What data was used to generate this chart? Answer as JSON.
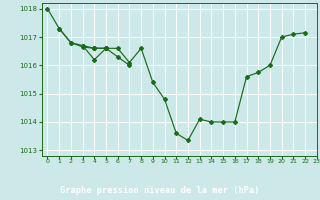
{
  "title": "Graphe pression niveau de la mer (hPa)",
  "background_color": "#cce8e8",
  "plot_bg_color": "#cce8e8",
  "grid_color": "#ffffff",
  "line_color": "#1a6b1a",
  "title_bg": "#2d7a2d",
  "title_fg": "#ffffff",
  "xlim": [
    -0.5,
    23
  ],
  "ylim": [
    1012.8,
    1018.2
  ],
  "yticks": [
    1013,
    1014,
    1015,
    1016,
    1017,
    1018
  ],
  "xticks": [
    0,
    1,
    2,
    3,
    4,
    5,
    6,
    7,
    8,
    9,
    10,
    11,
    12,
    13,
    14,
    15,
    16,
    17,
    18,
    19,
    20,
    21,
    22,
    23
  ],
  "series": [
    [
      1018.0,
      1017.3,
      1016.8,
      1016.7,
      1016.6,
      1016.6,
      1016.6,
      1016.1,
      1016.6,
      1015.4,
      1014.8,
      1013.6,
      1013.35,
      1014.1,
      1014.0,
      1014.0,
      1014.0,
      1015.6,
      1015.75,
      1016.0,
      1017.0,
      1017.1,
      1017.15,
      null
    ],
    [
      null,
      1017.3,
      1016.8,
      1016.65,
      1016.6,
      1016.6,
      null,
      null,
      null,
      null,
      null,
      null,
      null,
      null,
      null,
      null,
      null,
      null,
      null,
      null,
      null,
      null,
      null,
      null
    ],
    [
      null,
      null,
      null,
      1016.7,
      1016.2,
      1016.6,
      null,
      null,
      null,
      null,
      null,
      null,
      null,
      null,
      null,
      null,
      null,
      null,
      null,
      null,
      null,
      null,
      null,
      null
    ],
    [
      null,
      null,
      null,
      null,
      1016.6,
      1016.6,
      1016.3,
      1016.0,
      null,
      null,
      null,
      null,
      null,
      null,
      null,
      null,
      null,
      null,
      null,
      null,
      null,
      null,
      null,
      null
    ]
  ]
}
